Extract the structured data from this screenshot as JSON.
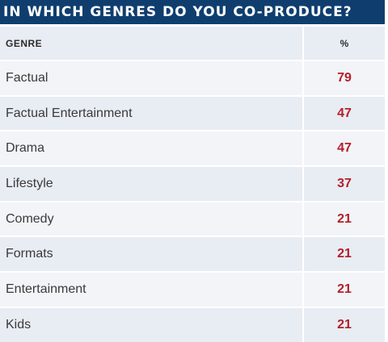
{
  "chart_data": {
    "type": "table",
    "title": "IN WHICH GENRES DO YOU CO-PRODUCE?",
    "columns": [
      "GENRE",
      "%"
    ],
    "rows": [
      {
        "genre": "Factual",
        "value": 79
      },
      {
        "genre": "Factual Entertainment",
        "value": 47
      },
      {
        "genre": "Drama",
        "value": 47
      },
      {
        "genre": "Lifestyle",
        "value": 37
      },
      {
        "genre": "Comedy",
        "value": 21
      },
      {
        "genre": "Formats",
        "value": 21
      },
      {
        "genre": "Entertainment",
        "value": 21
      },
      {
        "genre": "Kids",
        "value": 21
      }
    ]
  },
  "colors": {
    "title_background": "#0f3e6e",
    "value_text": "#b3202a",
    "row_light": "#f2f4f8",
    "row_dark": "#e8ecf3"
  }
}
